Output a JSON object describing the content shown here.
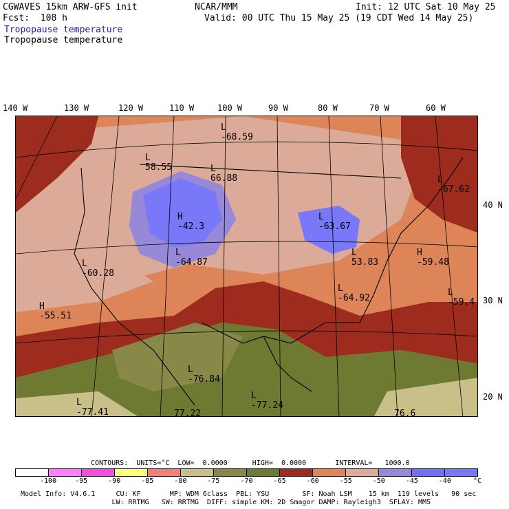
{
  "header": {
    "model_line": "CGWAVES 15km ARW-GFS init",
    "forecast_line": "Fcst:  108 h",
    "center": "NCAR/MMM",
    "init": "Init: 12 UTC Sat 10 May 25",
    "valid": "Valid: 00 UTC Thu 15 May 25 (19 CDT Wed 14 May 25)",
    "field_title_1": "Tropopause temperature",
    "field_title_2": "Tropopause temperature"
  },
  "longitude_labels": [
    "140 W",
    "130 W",
    "120 W",
    "110 W",
    "100 W",
    "90 W",
    "80 W",
    "70 W",
    "60 W"
  ],
  "latitude_labels": [
    "40 N",
    "30 N",
    "20 N"
  ],
  "map_labels": [
    {
      "hl": "L",
      "value": "-68.59"
    },
    {
      "hl": "L",
      "value": "58.55"
    },
    {
      "hl": "L",
      "value": "66.88"
    },
    {
      "hl": "H",
      "value": "-42.3"
    },
    {
      "hl": "L",
      "value": "-63.67"
    },
    {
      "hl": "L",
      "value": "-67.62"
    },
    {
      "hl": "L",
      "value": "-64.87"
    },
    {
      "hl": "L",
      "value": "-60.28"
    },
    {
      "hl": "L",
      "value": "53.83"
    },
    {
      "hl": "H",
      "value": "-59.48"
    },
    {
      "hl": "L",
      "value": "-64.92"
    },
    {
      "hl": "L",
      "value": "-59.4"
    },
    {
      "hl": "H",
      "value": "-55.51"
    },
    {
      "hl": "L",
      "value": "-76.84"
    },
    {
      "hl": "L",
      "value": "-77.24"
    },
    {
      "hl": "L",
      "value": "-77.41"
    },
    {
      "hl": "",
      "value": "77.22"
    },
    {
      "hl": "",
      "value": "76.6"
    }
  ],
  "contours": {
    "text": "CONTOURS:  UNITS=°C  LOW=  0.0000      HIGH=  0.0000       INTERVAL=   1000.0"
  },
  "colorbar": {
    "colors": [
      "#ffffff",
      "#ff80ff",
      "#ee50dd",
      "#ffff80",
      "#f08078",
      "#c8c088",
      "#888848",
      "#6e7a32",
      "#9e2c1e",
      "#dd8558",
      "#dcaa98",
      "#9888d8",
      "#7070f0",
      "#7878f8"
    ],
    "ticks": [
      "-100",
      "-95",
      "-90",
      "-85",
      "-80",
      "-75",
      "-70",
      "-65",
      "-60",
      "-55",
      "-50",
      "-45",
      "-40"
    ],
    "unit": "°C"
  },
  "footer": {
    "line1": "Model Info: V4.6.1     CU: KF       MP: WDM 6class  PBL: YSU        SF: Noah LSM    15 km  119 levels   90 sec",
    "line2": "                      LW: RRTMG   SW: RRTMG  DIFF: simple KM: 2D Smagor DAMP: Rayleigh3  SFLAY: MM5"
  }
}
